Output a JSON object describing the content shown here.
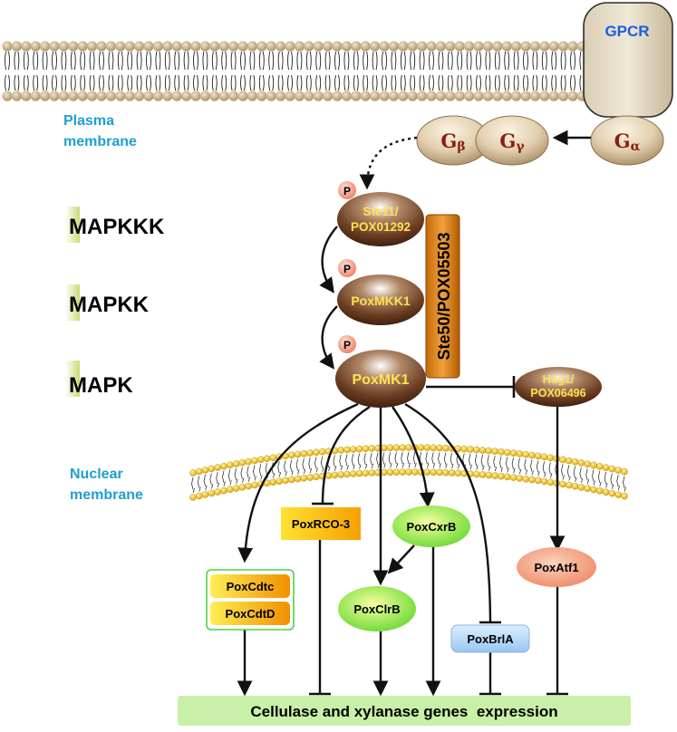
{
  "colors": {
    "membrane_head": "#b8a278",
    "nuclear_head": "#e8b400",
    "node_brown": "#6b3d22",
    "label_blue": "#1e9fd0",
    "gpcr_blue": "#1a5fe0",
    "yellow_text": "#ffe34d",
    "g_text": "#8a1c14",
    "expression_green": "#c9f0a8"
  },
  "labels": {
    "plasma": [
      "Plasma",
      "membrane"
    ],
    "nuclear": [
      "Nuclear",
      "membrane"
    ],
    "levels": {
      "mapkkk": {
        "first": "M",
        "rest": "APKKK"
      },
      "mapkk": {
        "first": "M",
        "rest": "APKK"
      },
      "mapk": {
        "first": "M",
        "rest": "APK"
      }
    }
  },
  "receptor": {
    "gpcr": "GPCR",
    "g_beta": {
      "base": "G",
      "sub": "β"
    },
    "g_gamma": {
      "base": "G",
      "sub": "γ"
    },
    "g_alpha": {
      "base": "G",
      "sub": "α"
    }
  },
  "phospho": "P",
  "kinases": {
    "ste11": [
      "Ste11/",
      "POX01292"
    ],
    "mkk1": "PoxMKK1",
    "mk1": "PoxMK1",
    "scaffold": "Ste50/POX05503",
    "hog1": [
      "Hog1/",
      "POX06496"
    ]
  },
  "factors": {
    "rco3": "PoxRCO-3",
    "cdtc": "PoxCdtc",
    "cdtd": "PoxCdtD",
    "cxrb": "PoxCxrB",
    "clrb": "PoxClrB",
    "brla": "PoxBrlA",
    "atf1": "PoxAtf1"
  },
  "output": "Cellulase and xylanase genes  expression"
}
